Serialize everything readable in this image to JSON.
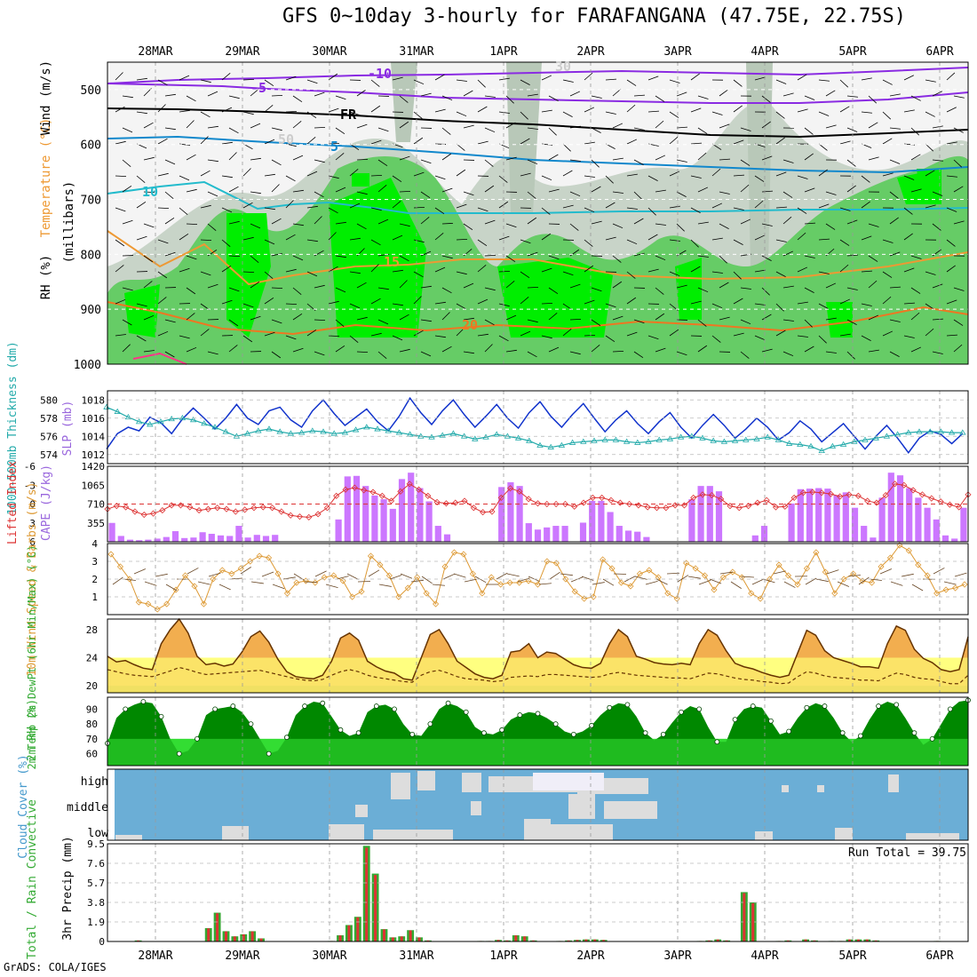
{
  "header": {
    "title": "GFS 0~10day 3-hourly for FARAFANGANA (47.75E, 22.75S)"
  },
  "footer": {
    "credit": "GrADS: COLA/IGES"
  },
  "colors": {
    "wind_rh_green": "#33cc33",
    "rh_bright": "#00ff00",
    "cape": "#cc77ff",
    "thickness": "#22aaaa",
    "slp": "#1133cc",
    "li": "#dd3333",
    "wind10": "#dd9933",
    "temp_max": "#f0a030",
    "temp_fill": "#ffff80",
    "rh2m": "#009900",
    "cloud": "#6baed6",
    "precip_total": "#33aa33",
    "precip_conv": "#dd3333"
  },
  "x_axis": {
    "dates": [
      "28MAR",
      "29MAR",
      "30MAR",
      "31MAR",
      "1APR",
      "2APR",
      "3APR",
      "4APR",
      "5APR",
      "6APR"
    ]
  },
  "chart_data": [
    {
      "type": "heatmap",
      "panel": "upper_air",
      "ylabel_parts": [
        "RH (%)",
        "Temperature (°C)",
        "Wind (m/s)",
        "(millibars)"
      ],
      "ylim": [
        1000,
        450
      ],
      "yticks": [
        500,
        600,
        700,
        800,
        900,
        1000
      ],
      "isotherm_labels": [
        "-10",
        "-5",
        "FR",
        "5",
        "10",
        "15",
        "20",
        "30",
        "50"
      ],
      "grid": true
    },
    {
      "type": "line",
      "panel": "thickness_slp",
      "ylabel_left": "1000-500mb Thickness (dm)",
      "ylabel_right": "SLP (mb)",
      "yticks_left": [
        "574",
        "576",
        "578",
        "580"
      ],
      "yticks_right": [
        "1012",
        "1014",
        "1016",
        "1018"
      ],
      "ylim_left": [
        573,
        581
      ],
      "ylim_right": [
        1011,
        1019
      ],
      "series": [
        {
          "name": "SLP (mb)",
          "axis": "right",
          "values": [
            1012.6,
            1014.3,
            1015.0,
            1014.6,
            1016.1,
            1015.5,
            1014.3,
            1015.9,
            1017.1,
            1016.0,
            1014.8,
            1016.0,
            1017.5,
            1016.0,
            1015.3,
            1016.8,
            1017.2,
            1015.8,
            1015.0,
            1016.8,
            1018.0,
            1016.5,
            1015.2,
            1016.1,
            1017.0,
            1015.6,
            1014.6,
            1016.2,
            1018.2,
            1016.6,
            1015.3,
            1016.8,
            1018.0,
            1016.4,
            1015.0,
            1016.2,
            1017.5,
            1016.0,
            1014.9,
            1016.6,
            1017.8,
            1016.2,
            1015.0,
            1016.4,
            1017.6,
            1016.0,
            1014.5,
            1015.8,
            1016.8,
            1015.4,
            1014.3,
            1015.6,
            1016.6,
            1015.0,
            1013.8,
            1015.2,
            1016.4,
            1015.2,
            1013.8,
            1014.8,
            1016.0,
            1015.0,
            1013.6,
            1014.4,
            1015.7,
            1014.8,
            1013.4,
            1014.4,
            1015.4,
            1014.0,
            1012.6,
            1014.0,
            1015.2,
            1013.8,
            1012.2,
            1013.8,
            1014.6,
            1014.2,
            1013.2,
            1014.3
          ]
        },
        {
          "name": "1000-500mb Thickness (dm)",
          "axis": "left",
          "values": [
            579.2,
            578.7,
            578.1,
            577.6,
            577.3,
            577.6,
            577.9,
            578.0,
            577.8,
            577.4,
            577.0,
            576.5,
            576.0,
            576.3,
            576.6,
            576.8,
            576.5,
            576.3,
            576.4,
            576.6,
            576.5,
            576.3,
            576.4,
            576.7,
            577.0,
            576.8,
            576.6,
            576.4,
            576.2,
            576.0,
            575.9,
            576.1,
            576.3,
            576.0,
            575.7,
            575.9,
            576.2,
            576.0,
            575.8,
            575.5,
            575.0,
            574.8,
            575.0,
            575.3,
            575.4,
            575.5,
            575.6,
            575.6,
            575.4,
            575.3,
            575.4,
            575.6,
            575.7,
            575.9,
            576.0,
            575.8,
            575.5,
            575.4,
            575.5,
            575.6,
            575.7,
            575.9,
            575.6,
            575.2,
            575.1,
            574.9,
            574.4,
            574.9,
            575.1,
            575.4,
            575.6,
            575.8,
            576.0,
            576.2,
            576.4,
            576.5,
            576.5,
            576.5,
            576.4,
            576.4
          ]
        }
      ]
    },
    {
      "type": "bar",
      "panel": "cape_li",
      "ylabel_left": "Lifted Index",
      "ylabel_right": "CAPE (J/kg)",
      "yticks_left": [
        "-6",
        "-3",
        "0",
        "3",
        "6"
      ],
      "yticks_right": [
        "355",
        "710",
        "1065",
        "1420"
      ],
      "cape_max": 1420,
      "series": [
        {
          "name": "CAPE (J/kg)",
          "values": [
            355,
            110,
            40,
            30,
            40,
            60,
            90,
            200,
            70,
            80,
            180,
            150,
            120,
            110,
            300,
            80,
            130,
            110,
            130,
            0,
            0,
            0,
            0,
            0,
            0,
            420,
            1230,
            1240,
            1050,
            870,
            800,
            620,
            1180,
            1300,
            1010,
            760,
            300,
            140,
            0,
            0,
            0,
            0,
            0,
            1030,
            1120,
            1050,
            350,
            230,
            270,
            300,
            300,
            0,
            360,
            770,
            770,
            560,
            300,
            210,
            190,
            90,
            0,
            0,
            0,
            0,
            800,
            1050,
            1050,
            950,
            0,
            0,
            0,
            120,
            300,
            0,
            0,
            720,
            990,
            1000,
            1010,
            1000,
            880,
            930,
            640,
            300,
            80,
            830,
            1300,
            1250,
            1010,
            830,
            640,
            420,
            120,
            60,
            640
          ]
        },
        {
          "name": "Lifted Index",
          "values": [
            0.8,
            0.3,
            0.5,
            1.2,
            1.7,
            1.5,
            1.0,
            0.2,
            0.2,
            0.5,
            1.0,
            0.8,
            0.6,
            0.8,
            1.2,
            0.9,
            0.6,
            0.5,
            0.6,
            1.2,
            1.8,
            2.0,
            2.1,
            1.6,
            0.6,
            -1.3,
            -2.3,
            -2.6,
            -2.2,
            -1.9,
            -1.3,
            -0.5,
            -2.0,
            -3.2,
            -2.3,
            -1.3,
            -0.3,
            -0.1,
            -0.2,
            -0.5,
            0.6,
            1.3,
            1.2,
            -1.0,
            -2.5,
            -2.0,
            -0.8,
            -0.1,
            0.0,
            0.0,
            0.0,
            0.4,
            -0.2,
            -1.0,
            -1.0,
            -0.6,
            -0.2,
            0.0,
            0.2,
            0.5,
            0.6,
            0.6,
            0.2,
            0.2,
            -1.0,
            -1.5,
            -1.4,
            -0.8,
            0.3,
            0.6,
            0.3,
            -0.2,
            -0.6,
            0.5,
            0.4,
            -1.0,
            -1.8,
            -1.9,
            -1.8,
            -1.6,
            -1.2,
            -1.5,
            -1.3,
            -0.5,
            -0.2,
            -1.4,
            -3.2,
            -3.0,
            -2.2,
            -1.5,
            -0.9,
            -0.4,
            0.1,
            0.5,
            -1.5
          ]
        }
      ]
    },
    {
      "type": "line",
      "panel": "wind10m",
      "ylabel": "10m Wind Speed & Barbs (m/s)",
      "yticks": [
        "1",
        "2",
        "3",
        "4"
      ],
      "ylim": [
        0,
        4
      ],
      "series": [
        {
          "name": "10m Wind Speed (m/s)",
          "values": [
            3.4,
            2.7,
            2.0,
            0.7,
            0.6,
            0.3,
            0.6,
            1.4,
            2.2,
            1.6,
            0.6,
            2.0,
            2.5,
            2.3,
            2.6,
            3.0,
            3.3,
            3.2,
            2.3,
            1.2,
            1.8,
            1.9,
            1.8,
            2.1,
            2.2,
            1.9,
            1.0,
            1.3,
            3.3,
            2.8,
            2.2,
            1.0,
            1.5,
            2.1,
            1.2,
            0.6,
            2.7,
            3.5,
            3.4,
            2.3,
            1.2,
            2.1,
            1.7,
            1.8,
            1.8,
            1.9,
            1.7,
            3.0,
            2.9,
            2.0,
            1.3,
            0.9,
            1.0,
            3.1,
            2.6,
            1.8,
            1.6,
            2.3,
            2.5,
            2.1,
            1.2,
            0.9,
            2.9,
            2.6,
            2.2,
            1.4,
            2.1,
            2.4,
            2.1,
            1.2,
            0.9,
            2.0,
            2.8,
            2.2,
            1.7,
            2.6,
            3.5,
            2.4,
            1.2,
            2.0,
            2.3,
            1.9,
            1.8,
            2.7,
            3.2,
            3.9,
            3.6,
            2.8,
            2.2,
            1.2,
            1.4,
            1.5,
            1.7
          ]
        }
      ]
    },
    {
      "type": "area",
      "panel": "temperature",
      "ylabel": "2m Temp 2m DewPt (6hr Min/Max) (°C)",
      "yticks": [
        "20",
        "24",
        "28"
      ],
      "ylim": [
        19,
        29.5
      ],
      "series": [
        {
          "name": "2m Temp (°C)",
          "values": [
            24.2,
            23.4,
            23.6,
            23.0,
            22.5,
            22.3,
            26.0,
            28.0,
            29.5,
            27.5,
            24.2,
            23.0,
            23.2,
            22.8,
            23.1,
            24.8,
            27.0,
            27.8,
            26.2,
            23.8,
            22.0,
            21.3,
            21.1,
            21.0,
            21.5,
            23.5,
            26.8,
            27.5,
            26.5,
            23.5,
            22.7,
            22.1,
            21.8,
            21.0,
            20.8,
            24.0,
            27.3,
            28.0,
            26.0,
            23.5,
            22.6,
            21.7,
            21.2,
            21.0,
            21.5,
            24.8,
            25.0,
            26.0,
            24.0,
            24.8,
            24.6,
            23.8,
            23.0,
            22.6,
            22.5,
            23.2,
            26.0,
            28.0,
            27.0,
            24.2,
            23.8,
            23.3,
            23.1,
            23.0,
            23.2,
            23.0,
            26.0,
            28.0,
            27.2,
            25.0,
            23.2,
            22.7,
            22.4,
            21.9,
            21.5,
            21.2,
            21.5,
            24.7,
            27.9,
            27.2,
            25.0,
            24.0,
            23.6,
            23.2,
            22.7,
            22.7,
            22.5,
            26.0,
            28.5,
            27.9,
            25.2,
            23.9,
            23.3,
            22.3,
            22.0,
            22.3,
            27.0
          ]
        },
        {
          "name": "2m DewPt (°C)",
          "values": [
            22.3,
            22.0,
            21.7,
            21.5,
            21.4,
            21.3,
            21.7,
            22.1,
            22.6,
            22.3,
            21.9,
            21.6,
            21.7,
            21.8,
            21.9,
            22.0,
            22.1,
            22.2,
            21.9,
            21.6,
            21.3,
            21.0,
            20.8,
            20.7,
            20.9,
            21.5,
            22.0,
            22.3,
            22.0,
            21.5,
            21.2,
            21.0,
            20.8,
            20.6,
            20.5,
            21.5,
            22.0,
            22.2,
            21.8,
            21.3,
            21.0,
            20.9,
            20.8,
            20.6,
            20.7,
            21.2,
            21.3,
            21.4,
            21.3,
            21.6,
            21.6,
            21.5,
            21.4,
            21.3,
            21.2,
            21.3,
            21.7,
            21.9,
            21.7,
            21.5,
            21.4,
            21.3,
            21.2,
            21.1,
            21.1,
            21.0,
            21.4,
            21.8,
            21.7,
            21.4,
            21.1,
            20.9,
            20.8,
            20.6,
            20.5,
            20.3,
            20.4,
            21.3,
            22.0,
            21.8,
            21.4,
            21.2,
            21.1,
            21.0,
            20.8,
            20.8,
            20.7,
            21.3,
            21.8,
            21.6,
            21.2,
            21.0,
            20.9,
            20.6,
            20.3,
            20.3,
            21.5
          ]
        }
      ]
    },
    {
      "type": "area",
      "panel": "rh2m",
      "ylabel": "2m RH (%)",
      "yticks": [
        "60",
        "70",
        "80",
        "90"
      ],
      "ylim": [
        52,
        98
      ],
      "series": [
        {
          "name": "2m RH (%)",
          "values": [
            67,
            84,
            90,
            93,
            95,
            94,
            85,
            70,
            60,
            62,
            70,
            86,
            90,
            91,
            92,
            88,
            80,
            70,
            60,
            62,
            71,
            86,
            92,
            95,
            94,
            85,
            76,
            72,
            74,
            88,
            92,
            93,
            90,
            80,
            73,
            72,
            80,
            90,
            94,
            92,
            88,
            78,
            74,
            73,
            76,
            83,
            86,
            88,
            87,
            84,
            80,
            75,
            73,
            75,
            79,
            86,
            91,
            94,
            93,
            85,
            74,
            69,
            73,
            81,
            88,
            92,
            90,
            78,
            68,
            68,
            83,
            90,
            92,
            91,
            82,
            73,
            75,
            84,
            91,
            94,
            92,
            84,
            74,
            68,
            72,
            83,
            92,
            95,
            93,
            84,
            74,
            66,
            70,
            80,
            90,
            95,
            96
          ]
        }
      ]
    },
    {
      "type": "bar",
      "panel": "cloud_cover",
      "ylabel": "Cloud Cover (%)",
      "row_labels": [
        "high",
        "middle",
        "low"
      ]
    },
    {
      "type": "bar",
      "panel": "precip",
      "ylabel_left": "Total / Rain Convective",
      "ylabel": "3hr Precip (mm)",
      "yticks": [
        "0",
        "1.9",
        "3.8",
        "5.7",
        "7.6",
        "9.5"
      ],
      "ylim": [
        0,
        9.5
      ],
      "run_total_label": "Run Total = 39.75",
      "series": [
        {
          "name": "Total",
          "values": [
            0,
            0,
            0,
            0.1,
            0,
            0,
            0,
            0,
            0,
            0,
            0,
            1.3,
            2.8,
            1.0,
            0.5,
            0.7,
            1.0,
            0.3,
            0,
            0,
            0,
            0,
            0,
            0,
            0,
            0.05,
            0.6,
            1.6,
            2.4,
            9.3,
            6.6,
            1.2,
            0.4,
            0.5,
            1.1,
            0.4,
            0.1,
            0,
            0,
            0,
            0,
            0,
            0.05,
            0.05,
            0.15,
            0.1,
            0.6,
            0.5,
            0.1,
            0,
            0,
            0.05,
            0.1,
            0.15,
            0.2,
            0.2,
            0.15,
            0,
            0,
            0,
            0,
            0,
            0,
            0,
            0,
            0,
            0,
            0.05,
            0.1,
            0.2,
            0.1,
            0,
            4.8,
            3.8,
            0,
            0,
            0.05,
            0.1,
            0,
            0.2,
            0.1,
            0,
            0.05,
            0.05,
            0.2,
            0.2,
            0.2,
            0.1,
            0,
            0,
            0,
            0,
            0,
            0,
            0.05,
            0,
            0,
            0
          ]
        }
      ]
    }
  ]
}
